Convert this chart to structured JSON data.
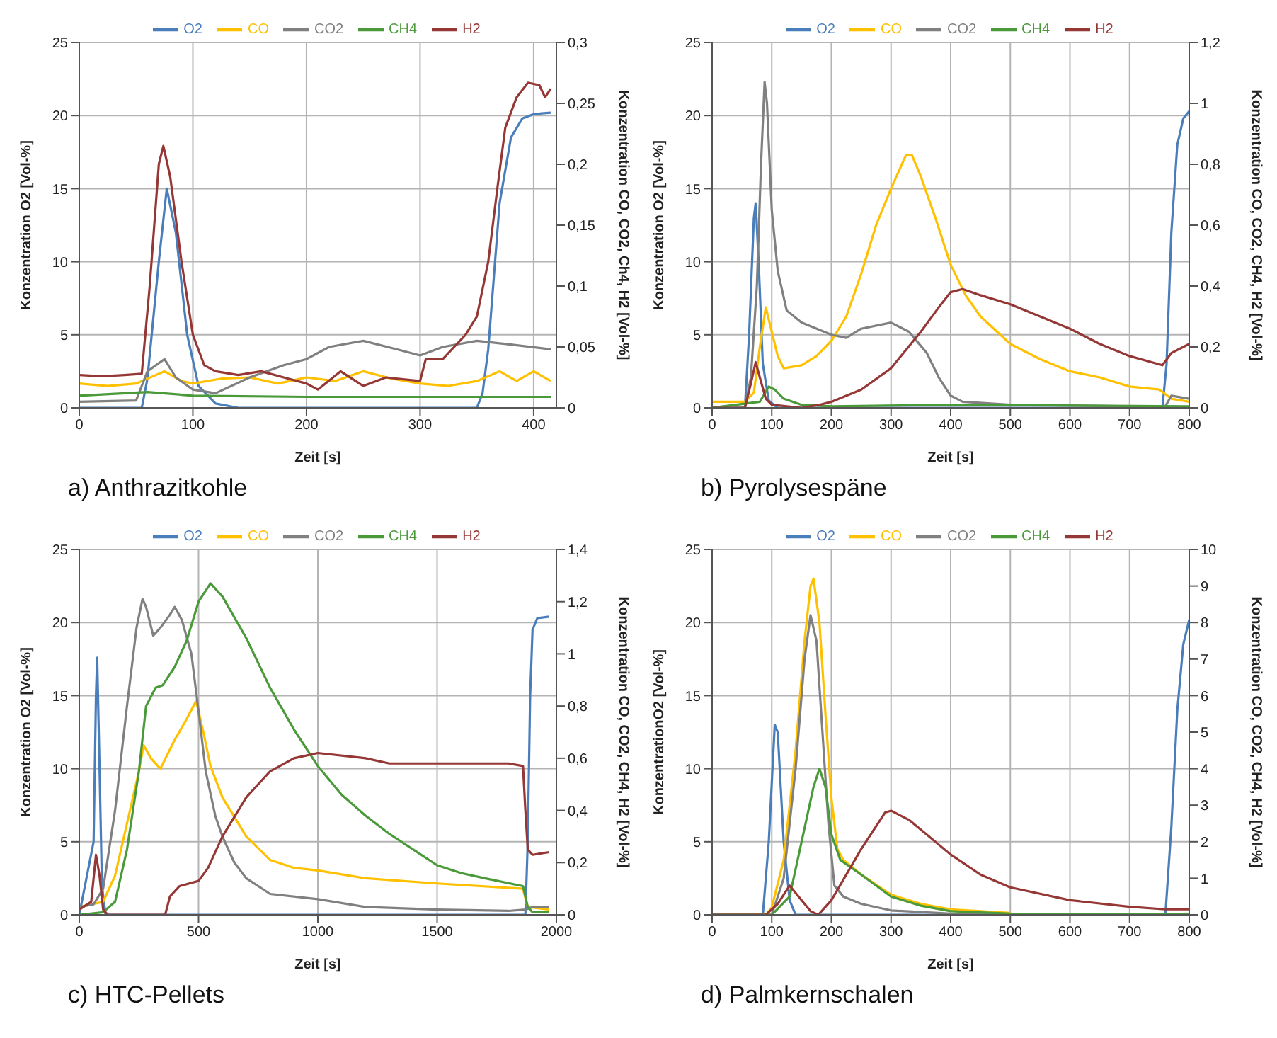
{
  "chart_data": [
    {
      "type": "line",
      "title": "a) Anthrazitkohle",
      "xlabel": "Zeit [s]",
      "ylabel": "Konzentration O2 [Vol-%]",
      "y2label": "Konzentration CO, CO2, Ch4, H2 [Vol-%]",
      "xlim": [
        0,
        420
      ],
      "xticks": [
        0,
        100,
        200,
        300,
        400
      ],
      "ylim": [
        0,
        25
      ],
      "yticks": [
        0,
        5,
        10,
        15,
        20,
        25
      ],
      "y2lim": [
        0,
        0.3
      ],
      "y2ticks": [
        0,
        {
          "value": 0.05,
          "label": "0,05"
        },
        {
          "value": 0.1,
          "label": "0,1"
        },
        {
          "value": 0.15,
          "label": "0,15"
        },
        {
          "value": 0.2,
          "label": "0,2"
        },
        {
          "value": 0.25,
          "label": "0,25"
        },
        {
          "value": 0.3,
          "label": "0,3"
        }
      ],
      "grid": true,
      "legend": "top",
      "series": [
        {
          "name": "O2",
          "color": "#4a7ebb",
          "x": [
            0,
            55,
            60,
            70,
            77,
            85,
            95,
            105,
            120,
            140,
            350,
            355,
            360,
            365,
            370,
            380,
            390,
            400,
            415
          ],
          "values": [
            0,
            0,
            2,
            10,
            15,
            12,
            5,
            1.5,
            0.3,
            0,
            0,
            1,
            4,
            9,
            14,
            18.5,
            19.8,
            20.1,
            20.2
          ]
        },
        {
          "name": "CO",
          "color": "#ffc000",
          "axis": "y2",
          "x": [
            0,
            25,
            50,
            75,
            90,
            100,
            125,
            150,
            175,
            200,
            225,
            250,
            275,
            300,
            325,
            350,
            370,
            385,
            400,
            415
          ],
          "values": [
            0.02,
            0.018,
            0.02,
            0.03,
            0.022,
            0.02,
            0.024,
            0.025,
            0.02,
            0.025,
            0.022,
            0.03,
            0.024,
            0.02,
            0.018,
            0.022,
            0.03,
            0.022,
            0.03,
            0.022
          ]
        },
        {
          "name": "CO2",
          "color": "#808080",
          "axis": "y2",
          "x": [
            0,
            50,
            60,
            75,
            85,
            100,
            120,
            150,
            180,
            200,
            220,
            250,
            280,
            300,
            320,
            350,
            380,
            415
          ],
          "values": [
            0.005,
            0.006,
            0.03,
            0.04,
            0.025,
            0.015,
            0.012,
            0.025,
            0.035,
            0.04,
            0.05,
            0.055,
            0.048,
            0.043,
            0.05,
            0.055,
            0.052,
            0.048
          ]
        },
        {
          "name": "CH4",
          "color": "#4a9a3a",
          "axis": "y2",
          "x": [
            0,
            60,
            100,
            200,
            300,
            415
          ],
          "values": [
            0.01,
            0.013,
            0.01,
            0.009,
            0.009,
            0.009
          ]
        },
        {
          "name": "H2",
          "color": "#953735",
          "axis": "y2",
          "x": [
            0,
            20,
            40,
            55,
            62,
            70,
            74,
            80,
            90,
            100,
            110,
            120,
            140,
            160,
            180,
            200,
            210,
            230,
            250,
            270,
            300,
            305,
            320,
            330,
            340,
            350,
            360,
            368,
            375,
            385,
            395,
            405,
            410,
            415
          ],
          "values": [
            0.027,
            0.026,
            0.027,
            0.028,
            0.1,
            0.2,
            0.215,
            0.19,
            0.12,
            0.06,
            0.035,
            0.03,
            0.027,
            0.03,
            0.025,
            0.02,
            0.015,
            0.03,
            0.018,
            0.025,
            0.022,
            0.04,
            0.04,
            0.05,
            0.06,
            0.075,
            0.12,
            0.18,
            0.23,
            0.255,
            0.267,
            0.265,
            0.255,
            0.262
          ]
        }
      ]
    },
    {
      "type": "line",
      "title": "b) Pyrolysespäne",
      "xlabel": "Zeit [s]",
      "ylabel": "Konzentration O2 [Vol-%]",
      "y2label": "Konzentration CO, CO2, CH4, H2 [Vol-%]",
      "xlim": [
        0,
        800
      ],
      "xticks": [
        0,
        100,
        200,
        300,
        400,
        500,
        600,
        700,
        800
      ],
      "ylim": [
        0,
        25
      ],
      "yticks": [
        0,
        5,
        10,
        15,
        20,
        25
      ],
      "y2lim": [
        0,
        1.2
      ],
      "y2ticks": [
        0,
        {
          "value": 0.2,
          "label": "0,2"
        },
        {
          "value": 0.4,
          "label": "0,4"
        },
        {
          "value": 0.6,
          "label": "0,6"
        },
        {
          "value": 0.8,
          "label": "0,8"
        },
        1,
        {
          "value": 1.2,
          "label": "1,2"
        }
      ],
      "grid": true,
      "legend": "top",
      "series": [
        {
          "name": "O2",
          "color": "#4a7ebb",
          "x": [
            0,
            55,
            62,
            70,
            73,
            78,
            85,
            95,
            110,
            755,
            762,
            770,
            780,
            790,
            800
          ],
          "values": [
            0,
            0,
            5,
            13,
            14,
            10,
            3,
            0.5,
            0,
            0,
            3,
            12,
            18,
            19.8,
            20.3
          ]
        },
        {
          "name": "CO",
          "color": "#ffc000",
          "axis": "y2",
          "x": [
            0,
            55,
            70,
            80,
            90,
            100,
            110,
            120,
            150,
            175,
            200,
            225,
            250,
            275,
            300,
            325,
            335,
            350,
            375,
            400,
            425,
            450,
            500,
            550,
            600,
            650,
            700,
            750,
            770,
            800
          ],
          "values": [
            0.02,
            0.02,
            0.05,
            0.2,
            0.33,
            0.25,
            0.17,
            0.13,
            0.14,
            0.17,
            0.22,
            0.3,
            0.44,
            0.6,
            0.72,
            0.83,
            0.83,
            0.76,
            0.62,
            0.47,
            0.37,
            0.3,
            0.21,
            0.16,
            0.12,
            0.1,
            0.07,
            0.06,
            0.03,
            0.02
          ]
        },
        {
          "name": "CO2",
          "color": "#808080",
          "axis": "y2",
          "x": [
            0,
            55,
            65,
            75,
            82,
            88,
            92,
            100,
            110,
            125,
            150,
            200,
            225,
            250,
            300,
            330,
            360,
            380,
            400,
            420,
            500,
            700,
            760,
            770,
            800
          ],
          "values": [
            0,
            0,
            0.1,
            0.4,
            0.8,
            1.07,
            1,
            0.65,
            0.45,
            0.32,
            0.28,
            0.24,
            0.23,
            0.26,
            0.28,
            0.25,
            0.18,
            0.1,
            0.04,
            0.02,
            0.01,
            0.005,
            0.005,
            0.04,
            0.03
          ]
        },
        {
          "name": "CH4",
          "color": "#4a9a3a",
          "axis": "y2",
          "x": [
            0,
            80,
            95,
            105,
            120,
            150,
            200,
            400,
            800
          ],
          "values": [
            0,
            0.02,
            0.07,
            0.06,
            0.03,
            0.01,
            0.005,
            0.01,
            0.005
          ]
        },
        {
          "name": "H2",
          "color": "#953735",
          "axis": "y2",
          "x": [
            0,
            55,
            65,
            73,
            80,
            90,
            100,
            150,
            180,
            200,
            250,
            300,
            350,
            380,
            400,
            420,
            450,
            500,
            550,
            600,
            650,
            700,
            755,
            770,
            790,
            800
          ],
          "values": [
            0,
            0,
            0.08,
            0.15,
            0.1,
            0.03,
            0.01,
            0,
            0.01,
            0.02,
            0.06,
            0.13,
            0.25,
            0.33,
            0.38,
            0.39,
            0.37,
            0.34,
            0.3,
            0.26,
            0.21,
            0.17,
            0.14,
            0.18,
            0.2,
            0.21
          ]
        }
      ]
    },
    {
      "type": "line",
      "title": "c) HTC-Pellets",
      "xlabel": "Zeit [s]",
      "ylabel": "Konzentration O2 [Vol-%]",
      "y2label": "Konzentration CO, CO2, CH4, H2 [Vol-%]",
      "xlim": [
        0,
        2000
      ],
      "xticks": [
        0,
        500,
        1000,
        1500,
        2000
      ],
      "ylim": [
        0,
        25
      ],
      "yticks": [
        0,
        5,
        10,
        15,
        20,
        25
      ],
      "y2lim": [
        0,
        1.4
      ],
      "y2ticks": [
        0,
        {
          "value": 0.2,
          "label": "0,2"
        },
        {
          "value": 0.4,
          "label": "0,4"
        },
        {
          "value": 0.6,
          "label": "0,6"
        },
        {
          "value": 0.8,
          "label": "0,8"
        },
        1,
        {
          "value": 1.2,
          "label": "1,2"
        },
        {
          "value": 1.4,
          "label": "1,4"
        }
      ],
      "grid": true,
      "legend": "top",
      "series": [
        {
          "name": "O2",
          "color": "#4a7ebb",
          "x": [
            0,
            60,
            70,
            75,
            85,
            95,
            110,
            1870,
            1880,
            1890,
            1900,
            1920,
            1970
          ],
          "values": [
            0,
            5,
            15,
            17.6,
            10,
            2,
            0,
            0,
            5,
            15,
            19.5,
            20.3,
            20.4
          ]
        },
        {
          "name": "CO",
          "color": "#ffc000",
          "axis": "y2",
          "x": [
            0,
            100,
            150,
            200,
            250,
            270,
            300,
            340,
            400,
            450,
            490,
            520,
            550,
            600,
            700,
            800,
            900,
            1000,
            1200,
            1500,
            1860,
            1880,
            1970
          ],
          "values": [
            0.03,
            0.05,
            0.15,
            0.35,
            0.55,
            0.65,
            0.6,
            0.56,
            0.67,
            0.75,
            0.82,
            0.7,
            0.57,
            0.45,
            0.3,
            0.21,
            0.18,
            0.17,
            0.14,
            0.12,
            0.1,
            0.03,
            0.02
          ]
        },
        {
          "name": "CO2",
          "color": "#808080",
          "axis": "y2",
          "x": [
            0,
            60,
            100,
            150,
            200,
            240,
            265,
            280,
            310,
            340,
            380,
            400,
            430,
            470,
            500,
            530,
            570,
            600,
            650,
            700,
            800,
            1000,
            1200,
            1500,
            1800,
            1870,
            1900,
            1970
          ],
          "values": [
            0.03,
            0.04,
            0.1,
            0.4,
            0.8,
            1.1,
            1.21,
            1.18,
            1.07,
            1.1,
            1.15,
            1.18,
            1.13,
            1,
            0.78,
            0.55,
            0.38,
            0.3,
            0.2,
            0.14,
            0.08,
            0.06,
            0.03,
            0.02,
            0.015,
            0.02,
            0.03,
            0.03
          ]
        },
        {
          "name": "CH4",
          "color": "#4a9a3a",
          "axis": "y2",
          "x": [
            0,
            100,
            150,
            200,
            250,
            280,
            320,
            350,
            400,
            450,
            500,
            550,
            600,
            700,
            800,
            900,
            1000,
            1100,
            1200,
            1300,
            1400,
            1500,
            1600,
            1700,
            1860,
            1880,
            1900,
            1970
          ],
          "values": [
            0,
            0.01,
            0.05,
            0.25,
            0.55,
            0.8,
            0.87,
            0.88,
            0.95,
            1.05,
            1.2,
            1.27,
            1.22,
            1.06,
            0.87,
            0.71,
            0.57,
            0.46,
            0.38,
            0.31,
            0.25,
            0.19,
            0.16,
            0.14,
            0.11,
            0.03,
            0.01,
            0.01
          ]
        },
        {
          "name": "H2",
          "color": "#953735",
          "axis": "y2",
          "x": [
            0,
            50,
            70,
            85,
            100,
            120,
            360,
            380,
            420,
            500,
            540,
            600,
            700,
            800,
            900,
            1000,
            1200,
            1300,
            1500,
            1800,
            1860,
            1870,
            1880,
            1900,
            1970
          ],
          "values": [
            0.02,
            0.05,
            0.23,
            0.15,
            0.02,
            0,
            0,
            0.07,
            0.11,
            0.13,
            0.18,
            0.3,
            0.45,
            0.55,
            0.6,
            0.62,
            0.6,
            0.58,
            0.58,
            0.58,
            0.57,
            0.4,
            0.25,
            0.23,
            0.24
          ]
        }
      ]
    },
    {
      "type": "line",
      "title": "d) Palmkernschalen",
      "xlabel": "Zeit [s]",
      "ylabel": "KonzentrationO2 [Vol-%]",
      "y2label": "Konzentration CO, CO2, CH4, H2 [Vol-%]",
      "xlim": [
        0,
        800
      ],
      "xticks": [
        0,
        100,
        200,
        300,
        400,
        500,
        600,
        700,
        800
      ],
      "ylim": [
        0,
        25
      ],
      "yticks": [
        0,
        5,
        10,
        15,
        20,
        25
      ],
      "y2lim": [
        0,
        10
      ],
      "y2ticks": [
        0,
        1,
        2,
        3,
        4,
        5,
        6,
        7,
        8,
        9,
        10
      ],
      "grid": true,
      "legend": "top",
      "series": [
        {
          "name": "O2",
          "color": "#4a7ebb",
          "x": [
            0,
            85,
            95,
            105,
            110,
            120,
            130,
            140,
            760,
            770,
            780,
            790,
            800
          ],
          "values": [
            0,
            0,
            5,
            13,
            12.5,
            5,
            1,
            0,
            0,
            6,
            14,
            18.5,
            20.2
          ]
        },
        {
          "name": "CO",
          "color": "#ffc000",
          "axis": "y2",
          "x": [
            0,
            90,
            100,
            120,
            140,
            155,
            165,
            170,
            180,
            190,
            200,
            210,
            220,
            250,
            300,
            350,
            400,
            500
          ],
          "values": [
            0,
            0,
            0.2,
            1.5,
            4.5,
            7.5,
            9,
            9.2,
            8,
            5.5,
            3.2,
            1.8,
            1.5,
            1.1,
            0.55,
            0.3,
            0.15,
            0.05
          ]
        },
        {
          "name": "CO2",
          "color": "#808080",
          "axis": "y2",
          "x": [
            0,
            100,
            120,
            140,
            155,
            165,
            175,
            185,
            195,
            205,
            220,
            250,
            300,
            400,
            800
          ],
          "values": [
            0,
            0,
            1,
            4,
            7,
            8.2,
            7.5,
            5,
            2.5,
            0.8,
            0.5,
            0.3,
            0.12,
            0.03,
            0
          ]
        },
        {
          "name": "CH4",
          "color": "#4a9a3a",
          "axis": "y2",
          "x": [
            0,
            100,
            130,
            150,
            170,
            180,
            190,
            200,
            215,
            250,
            300,
            350,
            400,
            500,
            800
          ],
          "values": [
            0,
            0,
            0.5,
            2,
            3.5,
            4,
            3.5,
            2.2,
            1.5,
            1.1,
            0.5,
            0.25,
            0.1,
            0.03,
            0.02
          ]
        },
        {
          "name": "H2",
          "color": "#953735",
          "axis": "y2",
          "x": [
            0,
            90,
            110,
            130,
            145,
            165,
            178,
            200,
            250,
            290,
            300,
            330,
            400,
            450,
            500,
            600,
            700,
            760,
            800
          ],
          "values": [
            0,
            0,
            0.3,
            0.8,
            0.5,
            0.1,
            0,
            0.4,
            1.8,
            2.8,
            2.85,
            2.6,
            1.65,
            1.1,
            0.75,
            0.4,
            0.22,
            0.15,
            0.15
          ]
        }
      ]
    }
  ]
}
